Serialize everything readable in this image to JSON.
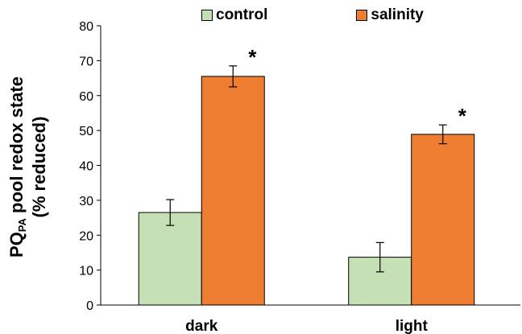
{
  "chart_data": {
    "type": "bar",
    "categories": [
      "dark",
      "light"
    ],
    "series": [
      {
        "name": "control",
        "values": [
          26.5,
          13.7
        ],
        "errors": [
          3.7,
          4.2
        ],
        "color": "#c5e0b4"
      },
      {
        "name": "salinity",
        "values": [
          65.5,
          48.9
        ],
        "errors": [
          3.0,
          2.7
        ],
        "color": "#ed7d31"
      }
    ],
    "significance": [
      [
        false,
        true
      ],
      [
        false,
        true
      ]
    ],
    "significance_mark": "*",
    "ylabel_main": "PQ",
    "ylabel_sub": "PA",
    "ylabel_rest": " pool redox state",
    "ylabel_line2": "(% reduced)",
    "ylim": [
      0,
      80
    ],
    "yticks": [
      0,
      10,
      20,
      30,
      40,
      50,
      60,
      70,
      80
    ],
    "grid": false,
    "legend_position": "top"
  }
}
